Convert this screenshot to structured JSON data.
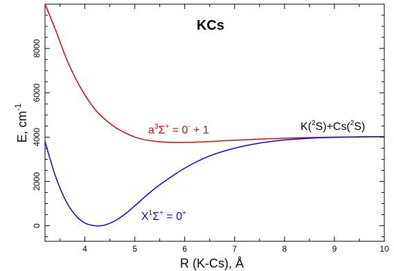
{
  "chart_data": {
    "type": "line",
    "title": "KCs",
    "xlabel": "R (K-Cs), Å",
    "ylabel": "E, cm",
    "ylabel_superscript": "-1",
    "xlim": [
      3.2,
      10
    ],
    "ylim": [
      -700,
      10000
    ],
    "xticks": [
      4,
      5,
      6,
      7,
      8,
      9,
      10
    ],
    "yticks": [
      0,
      2000,
      4000,
      6000,
      8000
    ],
    "grid": false,
    "series": [
      {
        "label_parts": [
          "a",
          "3",
          "Σ",
          "+",
          " = 0",
          "-",
          " + 1"
        ],
        "color": "#e00000",
        "x": [
          3.2,
          3.4,
          3.6,
          3.8,
          4.0,
          4.2,
          4.4,
          4.6,
          4.8,
          5.0,
          5.2,
          5.5,
          5.8,
          6.0,
          6.2,
          6.5,
          7.0,
          7.5,
          8.0,
          8.5,
          9.0,
          9.5,
          10.0
        ],
        "y": [
          10000,
          8900,
          7700,
          6700,
          5900,
          5250,
          4800,
          4450,
          4200,
          4000,
          3880,
          3790,
          3760,
          3760,
          3770,
          3800,
          3860,
          3910,
          3950,
          3980,
          4000,
          4010,
          4020
        ]
      },
      {
        "label_parts": [
          "X",
          "1",
          "Σ",
          "+",
          " = 0",
          "+"
        ],
        "color": "#0000e0",
        "x": [
          3.2,
          3.4,
          3.6,
          3.8,
          4.0,
          4.2,
          4.3,
          4.4,
          4.6,
          4.8,
          5.0,
          5.25,
          5.5,
          6.0,
          6.5,
          7.0,
          7.5,
          8.0,
          8.5,
          9.0,
          9.5,
          10.0
        ],
        "y": [
          3800,
          2300,
          1200,
          500,
          120,
          0,
          0,
          30,
          220,
          520,
          900,
          1400,
          1850,
          2600,
          3150,
          3500,
          3730,
          3870,
          3950,
          3990,
          4010,
          4020
        ]
      }
    ],
    "asymptote_label_parts": [
      "K(",
      "2",
      "S)+Cs(",
      "2",
      "S)"
    ]
  }
}
